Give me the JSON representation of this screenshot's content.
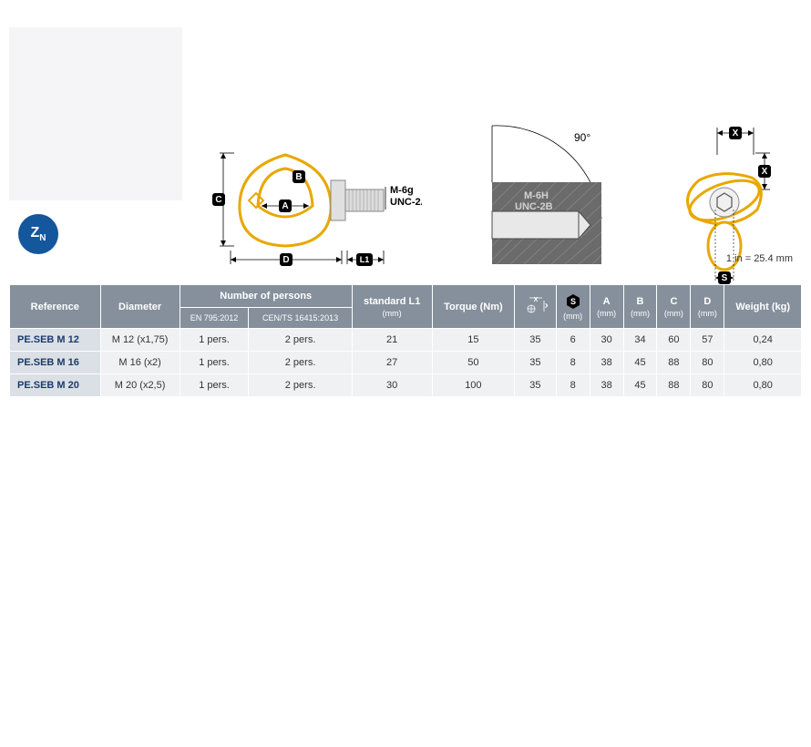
{
  "badge": "Zn",
  "conversion": "1 in = 25.4 mm",
  "diagrams": {
    "d1": {
      "threadTop": "M-6g",
      "threadBot": "UNC-2A",
      "A": "A",
      "B": "B",
      "C": "C",
      "D": "D",
      "L1": "L1"
    },
    "d2": {
      "angle": "90°",
      "threadTop": "M-6H",
      "threadBot": "UNC-2B"
    },
    "d3": {
      "X": "X",
      "S": "S"
    }
  },
  "colors": {
    "outline": "#e8a800",
    "fill": "#d9d9d9",
    "grey": "#b0b0b0",
    "dark": "#5a5a5a",
    "header": "#85909c"
  },
  "table": {
    "headers": {
      "reference": "Reference",
      "diameter": "Diameter",
      "persons": "Number of persons",
      "persons_en": "EN 795:2012",
      "persons_cen": "CEN/TS 16415:2013",
      "l1": "standard L1",
      "torque": "Torque (Nm)",
      "x": "X",
      "s": "S",
      "a": "A",
      "b": "B",
      "c": "C",
      "d": "D",
      "weight": "Weight (kg)",
      "mm": "(mm)"
    },
    "rows": [
      {
        "ref": "PE.SEB M 12",
        "dia": "M 12 (x1,75)",
        "en": "1 pers.",
        "cen": "2 pers.",
        "l1": "21",
        "torque": "15",
        "x": "35",
        "s": "6",
        "a": "30",
        "b": "34",
        "c": "60",
        "d": "57",
        "w": "0,24"
      },
      {
        "ref": "PE.SEB M 16",
        "dia": "M 16 (x2)",
        "en": "1 pers.",
        "cen": "2 pers.",
        "l1": "27",
        "torque": "50",
        "x": "35",
        "s": "8",
        "a": "38",
        "b": "45",
        "c": "88",
        "d": "80",
        "w": "0,80"
      },
      {
        "ref": "PE.SEB M 20",
        "dia": "M 20 (x2,5)",
        "en": "1 pers.",
        "cen": "2 pers.",
        "l1": "30",
        "torque": "100",
        "x": "35",
        "s": "8",
        "a": "38",
        "b": "45",
        "c": "88",
        "d": "80",
        "w": "0,80"
      }
    ]
  }
}
